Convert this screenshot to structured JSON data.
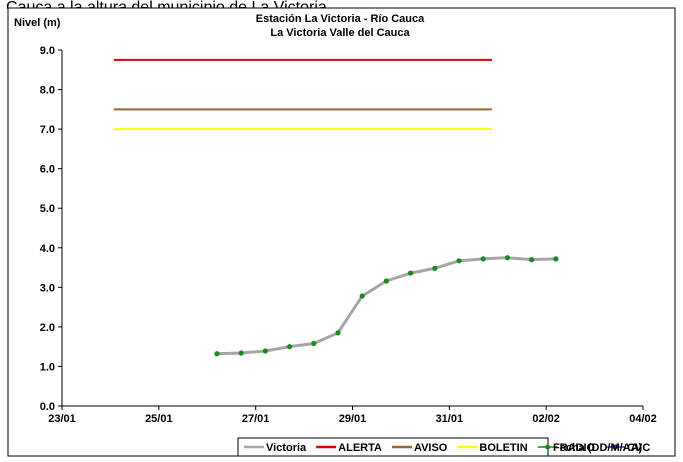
{
  "caption": "Cauca a la altura del municipio de La Victoria.",
  "chart_data": {
    "type": "line",
    "title": "Estación La Victoria - Río Cauca",
    "subtitle": "La Victoria Valle del Cauca",
    "y_label": "Nivel (m)",
    "x_label": "Fecha (DD/M/AA)",
    "xlim": [
      23,
      35
    ],
    "xticks": [
      {
        "value": 23,
        "label": "23/01"
      },
      {
        "value": 25,
        "label": "25/01"
      },
      {
        "value": 27,
        "label": "27/01"
      },
      {
        "value": 29,
        "label": "29/01"
      },
      {
        "value": 31,
        "label": "31/01"
      },
      {
        "value": 33,
        "label": "02/02"
      },
      {
        "value": 35,
        "label": "04/02"
      }
    ],
    "ylim": [
      0,
      9
    ],
    "yticks": [
      {
        "value": 0,
        "label": "0.0"
      },
      {
        "value": 1,
        "label": "1.0"
      },
      {
        "value": 2,
        "label": "2.0"
      },
      {
        "value": 3,
        "label": "3.0"
      },
      {
        "value": 4,
        "label": "4.0"
      },
      {
        "value": 5,
        "label": "5.0"
      },
      {
        "value": 6,
        "label": "6.0"
      },
      {
        "value": 7,
        "label": "7.0"
      },
      {
        "value": 8,
        "label": "8.0"
      },
      {
        "value": 9,
        "label": "9.0"
      }
    ],
    "series": [
      {
        "name": "Victoria",
        "color": "#a6a6a6",
        "marker": false,
        "x": [
          26.2,
          26.7,
          27.2,
          27.7,
          28.2,
          28.7,
          29.2,
          29.7,
          30.2,
          30.7,
          31.2,
          31.7,
          32.2,
          32.7,
          33.2
        ],
        "values": [
          1.32,
          1.34,
          1.39,
          1.5,
          1.58,
          1.85,
          2.78,
          3.16,
          3.36,
          3.48,
          3.67,
          3.72,
          3.75,
          3.7,
          3.72
        ]
      },
      {
        "name": "ALERTA",
        "color": "#e00000",
        "marker": false,
        "x": [
          24.07,
          31.88
        ],
        "values": [
          8.75,
          8.75
        ]
      },
      {
        "name": "AVISO",
        "color": "#996633",
        "marker": false,
        "x": [
          24.07,
          31.88
        ],
        "values": [
          7.5,
          7.5
        ]
      },
      {
        "name": "BOLETIN",
        "color": "#ffff00",
        "marker": false,
        "x": [
          24.07,
          31.88
        ],
        "values": [
          7.0,
          7.0
        ]
      },
      {
        "name": "RADIO",
        "color": "#1a8a1a",
        "marker": true,
        "x": [
          26.2,
          26.7,
          27.2,
          27.7,
          28.2,
          28.7,
          29.2,
          29.7,
          30.2,
          30.7,
          31.2,
          31.7,
          32.2,
          32.7,
          33.2
        ],
        "values": [
          1.32,
          1.34,
          1.39,
          1.5,
          1.58,
          1.85,
          2.78,
          3.16,
          3.36,
          3.48,
          3.67,
          3.72,
          3.75,
          3.7,
          3.72
        ]
      },
      {
        "name": "CVC",
        "color": "#3333cc",
        "marker": true,
        "x": [],
        "values": []
      }
    ]
  }
}
